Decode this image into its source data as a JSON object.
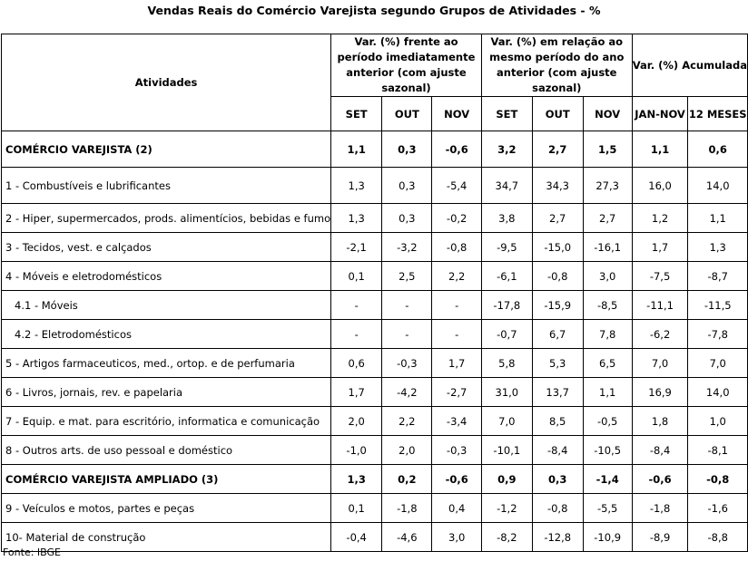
{
  "title": "Vendas Reais do Comércio Varejista segundo Grupos de Atividades - %",
  "header": {
    "activities": "Atividades",
    "group1": "Var. (%) frente ao período imediatamente anterior (com ajuste sazonal)",
    "group2": "Var. (%) em relação ao mesmo período do ano anterior (com ajuste sazonal)",
    "group3": "Var. (%) Acumulada",
    "sub": [
      "SET",
      "OUT",
      "NOV",
      "SET",
      "OUT",
      "NOV",
      "JAN-NOV",
      "12 MESES"
    ]
  },
  "rows": [
    {
      "label": "COMÉRCIO VAREJISTA (2)",
      "values": [
        "1,1",
        "0,3",
        "-0,6",
        "3,2",
        "2,7",
        "1,5",
        "1,1",
        "0,6"
      ],
      "bold": true,
      "indent": false
    },
    {
      "label": "1 - Combustíveis e lubrificantes",
      "values": [
        "1,3",
        "0,3",
        "-5,4",
        "34,7",
        "34,3",
        "27,3",
        "16,0",
        "14,0"
      ],
      "bold": false,
      "indent": false
    },
    {
      "label": "2 - Hiper, supermercados, prods. alimentícios, bebidas e fumo",
      "values": [
        "1,3",
        "0,3",
        "-0,2",
        "3,8",
        "2,7",
        "2,7",
        "1,2",
        "1,1"
      ],
      "bold": false,
      "indent": false
    },
    {
      "label": "3 - Tecidos, vest. e calçados",
      "values": [
        "-2,1",
        "-3,2",
        "-0,8",
        "-9,5",
        "-15,0",
        "-16,1",
        "1,7",
        "1,3"
      ],
      "bold": false,
      "indent": false
    },
    {
      "label": "4 - Móveis e eletrodomésticos",
      "values": [
        "0,1",
        "2,5",
        "2,2",
        "-6,1",
        "-0,8",
        "3,0",
        "-7,5",
        "-8,7"
      ],
      "bold": false,
      "indent": false
    },
    {
      "label": "4.1 - Móveis",
      "values": [
        "-",
        "-",
        "-",
        "-17,8",
        "-15,9",
        "-8,5",
        "-11,1",
        "-11,5"
      ],
      "bold": false,
      "indent": true
    },
    {
      "label": "4.2 - Eletrodomésticos",
      "values": [
        "-",
        "-",
        "-",
        "-0,7",
        "6,7",
        "7,8",
        "-6,2",
        "-7,8"
      ],
      "bold": false,
      "indent": true
    },
    {
      "label": "5 - Artigos farmaceuticos, med., ortop. e de perfumaria",
      "values": [
        "0,6",
        "-0,3",
        "1,7",
        "5,8",
        "5,3",
        "6,5",
        "7,0",
        "7,0"
      ],
      "bold": false,
      "indent": false
    },
    {
      "label": "6 - Livros, jornais, rev. e papelaria",
      "values": [
        "1,7",
        "-4,2",
        "-2,7",
        "31,0",
        "13,7",
        "1,1",
        "16,9",
        "14,0"
      ],
      "bold": false,
      "indent": false
    },
    {
      "label": "7 - Equip. e mat. para escritório, informatica e comunicação",
      "values": [
        "2,0",
        "2,2",
        "-3,4",
        "7,0",
        "8,5",
        "-0,5",
        "1,8",
        "1,0"
      ],
      "bold": false,
      "indent": false
    },
    {
      "label": "8 - Outros arts. de uso pessoal e doméstico",
      "values": [
        "-1,0",
        "2,0",
        "-0,3",
        "-10,1",
        "-8,4",
        "-10,5",
        "-8,4",
        "-8,1"
      ],
      "bold": false,
      "indent": false
    },
    {
      "label": "COMÉRCIO VAREJISTA AMPLIADO (3)",
      "values": [
        "1,3",
        "0,2",
        "-0,6",
        "0,9",
        "0,3",
        "-1,4",
        "-0,6",
        "-0,8"
      ],
      "bold": true,
      "indent": false
    },
    {
      "label": "9 - Veículos e motos, partes e peças",
      "values": [
        "0,1",
        "-1,8",
        "0,4",
        "-1,2",
        "-0,8",
        "-5,5",
        "-1,8",
        "-1,6"
      ],
      "bold": false,
      "indent": false
    },
    {
      "label": "10- Material de construção",
      "values": [
        "-0,4",
        "-4,6",
        "3,0",
        "-8,2",
        "-12,8",
        "-10,9",
        "-8,9",
        "-8,8"
      ],
      "bold": false,
      "indent": false
    }
  ],
  "source": "Fonte: IBGE"
}
